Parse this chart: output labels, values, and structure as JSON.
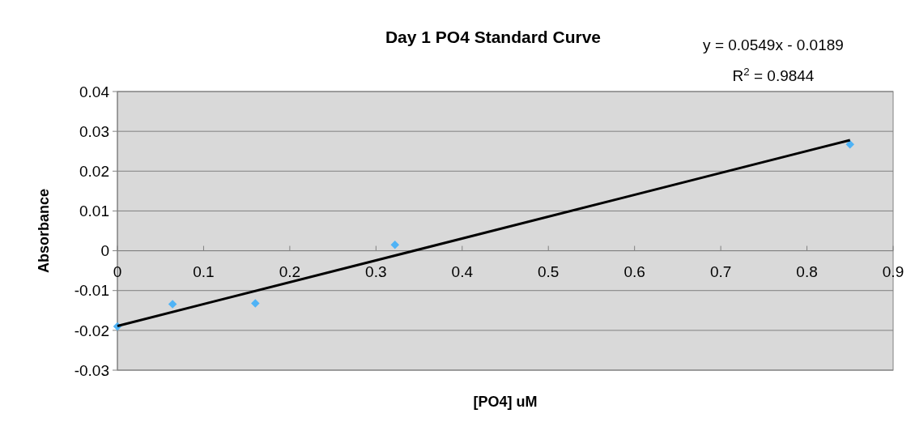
{
  "chart_data": {
    "type": "scatter",
    "title": "Day 1 PO4 Standard Curve",
    "xlabel": "[PO4] uM",
    "ylabel": "Absorbance",
    "annotations": [
      "y = 0.0549x - 0.0189",
      "R$^{2}$ = 0.9844"
    ],
    "series": [
      {
        "color": "#4fb3f6",
        "x": [
          0,
          0.064,
          0.16,
          0.322,
          0.85
        ],
        "values": [
          -0.019,
          -0.0134,
          -0.0132,
          0.0015,
          0.0267
        ],
        "marker": "diamond"
      },
      {
        "type": "line",
        "color": "#000000",
        "x": [
          0,
          0.85
        ],
        "values": [
          -0.0189,
          0.0278
        ],
        "marker": "none"
      }
    ],
    "xlim": [
      0,
      0.9
    ],
    "xticks": [
      0,
      0.1,
      0.2,
      0.3,
      0.4,
      0.5,
      0.6,
      0.7,
      0.8,
      0.9
    ],
    "ylim": [
      -0.03,
      0.04
    ],
    "yticks": [
      -0.03,
      -0.02,
      -0.01,
      0,
      0.01,
      0.02,
      0.03,
      0.04
    ],
    "grid": "y"
  }
}
